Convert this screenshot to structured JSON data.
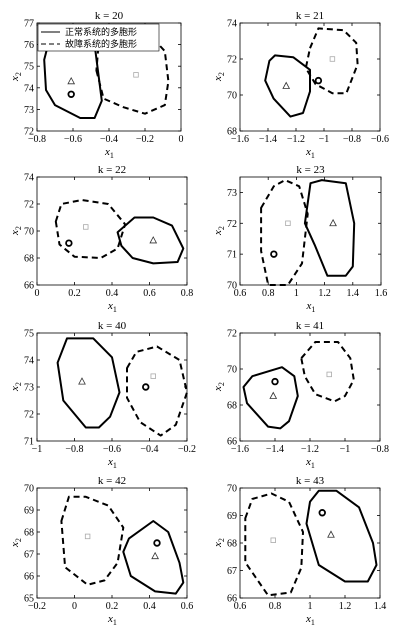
{
  "chart_data": [
    {
      "type": "scatter",
      "title": "k = 20",
      "xlabel": "x1",
      "ylabel": "x2",
      "xlim": [
        -0.8,
        0
      ],
      "ylim": [
        72,
        77
      ],
      "xticks": [
        -0.8,
        -0.6,
        -0.4,
        -0.2,
        0
      ],
      "yticks": [
        72,
        73,
        74,
        75,
        76,
        77
      ],
      "legend": {
        "placement": "top-left",
        "entries": [
          {
            "label": "正常系统的多胞形",
            "style": "solid"
          },
          {
            "label": "故障系统的多胞形",
            "style": "dashed"
          }
        ]
      },
      "series": [
        {
          "style": "solid",
          "polygon": [
            [
              -0.76,
              75.3
            ],
            [
              -0.75,
              73.9
            ],
            [
              -0.7,
              73.2
            ],
            [
              -0.56,
              72.6
            ],
            [
              -0.48,
              72.6
            ],
            [
              -0.44,
              73.4
            ],
            [
              -0.48,
              76.0
            ],
            [
              -0.56,
              76.6
            ],
            [
              -0.72,
              76.6
            ]
          ],
          "triangle": [
            -0.61,
            74.3
          ]
        },
        {
          "style": "dashed",
          "polygon": [
            [
              -0.47,
              74.8
            ],
            [
              -0.43,
              73.5
            ],
            [
              -0.32,
              73.1
            ],
            [
              -0.2,
              72.8
            ],
            [
              -0.09,
              73.2
            ],
            [
              -0.07,
              74.3
            ],
            [
              -0.09,
              75.7
            ],
            [
              -0.19,
              76.6
            ],
            [
              -0.36,
              76.6
            ],
            [
              -0.46,
              75.8
            ]
          ],
          "square": [
            -0.25,
            74.6
          ]
        }
      ],
      "circle": [
        -0.61,
        73.7
      ]
    },
    {
      "type": "scatter",
      "title": "k = 21",
      "xlabel": "x1",
      "ylabel": "x2",
      "xlim": [
        -1.6,
        -0.6
      ],
      "ylim": [
        68,
        74
      ],
      "xticks": [
        -1.6,
        -1.4,
        -1.2,
        -1.0,
        -0.8,
        -0.6
      ],
      "yticks": [
        68,
        70,
        72,
        74
      ],
      "series": [
        {
          "style": "solid",
          "polygon": [
            [
              -1.39,
              71.9
            ],
            [
              -1.35,
              72.2
            ],
            [
              -1.22,
              72.1
            ],
            [
              -1.1,
              71.4
            ],
            [
              -1.1,
              70.2
            ],
            [
              -1.15,
              69.0
            ],
            [
              -1.24,
              68.8
            ],
            [
              -1.36,
              69.8
            ],
            [
              -1.42,
              70.8
            ]
          ],
          "triangle": [
            -1.27,
            70.5
          ]
        },
        {
          "style": "dashed",
          "polygon": [
            [
              -1.1,
              72.6
            ],
            [
              -1.04,
              73.7
            ],
            [
              -0.86,
              73.6
            ],
            [
              -0.77,
              72.9
            ],
            [
              -0.76,
              71.7
            ],
            [
              -0.84,
              70.1
            ],
            [
              -0.94,
              70.1
            ],
            [
              -1.06,
              70.6
            ],
            [
              -1.13,
              71.5
            ]
          ],
          "square": [
            -0.94,
            72.0
          ]
        }
      ],
      "circle": [
        -1.04,
        70.8
      ]
    },
    {
      "type": "scatter",
      "title": "k = 22",
      "xlabel": "x1",
      "ylabel": "x2",
      "xlim": [
        0,
        0.8
      ],
      "ylim": [
        66,
        74
      ],
      "xticks": [
        0,
        0.2,
        0.4,
        0.6,
        0.8
      ],
      "yticks": [
        66,
        68,
        70,
        72,
        74
      ],
      "series": [
        {
          "style": "solid",
          "polygon": [
            [
              0.43,
              69.9
            ],
            [
              0.52,
              71.0
            ],
            [
              0.62,
              71.0
            ],
            [
              0.72,
              70.4
            ],
            [
              0.78,
              68.7
            ],
            [
              0.75,
              67.7
            ],
            [
              0.62,
              67.6
            ],
            [
              0.51,
              68.0
            ],
            [
              0.45,
              68.9
            ]
          ],
          "triangle": [
            0.62,
            69.3
          ]
        },
        {
          "style": "dashed",
          "polygon": [
            [
              0.1,
              70.7
            ],
            [
              0.13,
              72.0
            ],
            [
              0.24,
              72.3
            ],
            [
              0.38,
              72.0
            ],
            [
              0.47,
              70.5
            ],
            [
              0.43,
              68.7
            ],
            [
              0.34,
              68.0
            ],
            [
              0.2,
              68.1
            ],
            [
              0.12,
              69.0
            ]
          ],
          "square": [
            0.26,
            70.3
          ]
        }
      ],
      "circle": [
        0.17,
        69.1
      ]
    },
    {
      "type": "scatter",
      "title": "k = 23",
      "xlabel": "x1",
      "ylabel": "x2",
      "xlim": [
        0.6,
        1.6
      ],
      "ylim": [
        70,
        73.5
      ],
      "xticks": [
        0.6,
        0.8,
        1.0,
        1.2,
        1.4,
        1.6
      ],
      "yticks": [
        70,
        71,
        72,
        73
      ],
      "series": [
        {
          "style": "solid",
          "polygon": [
            [
              1.06,
              72.0
            ],
            [
              1.1,
              73.3
            ],
            [
              1.18,
              73.4
            ],
            [
              1.35,
              73.3
            ],
            [
              1.41,
              72.0
            ],
            [
              1.4,
              70.6
            ],
            [
              1.35,
              70.3
            ],
            [
              1.22,
              70.3
            ],
            [
              1.13,
              71.3
            ]
          ],
          "triangle": [
            1.26,
            72.0
          ]
        },
        {
          "style": "dashed",
          "polygon": [
            [
              0.75,
              72.5
            ],
            [
              0.84,
              73.2
            ],
            [
              0.92,
              73.4
            ],
            [
              1.02,
              73.2
            ],
            [
              1.08,
              72.3
            ],
            [
              1.04,
              70.7
            ],
            [
              0.94,
              70.0
            ],
            [
              0.8,
              70.0
            ],
            [
              0.75,
              71.1
            ]
          ],
          "square": [
            0.94,
            72.0
          ]
        }
      ],
      "circle": [
        0.84,
        71.0
      ]
    },
    {
      "type": "scatter",
      "title": "k = 40",
      "xlabel": "x1",
      "ylabel": "x2",
      "xlim": [
        -1,
        -0.2
      ],
      "ylim": [
        71,
        75
      ],
      "xticks": [
        -1,
        -0.8,
        -0.6,
        -0.4,
        -0.2
      ],
      "yticks": [
        71,
        72,
        73,
        74,
        75
      ],
      "series": [
        {
          "style": "solid",
          "polygon": [
            [
              -0.89,
              73.9
            ],
            [
              -0.84,
              74.8
            ],
            [
              -0.7,
              74.8
            ],
            [
              -0.6,
              74.1
            ],
            [
              -0.56,
              72.8
            ],
            [
              -0.61,
              71.9
            ],
            [
              -0.67,
              71.5
            ],
            [
              -0.74,
              71.5
            ],
            [
              -0.86,
              72.5
            ]
          ],
          "triangle": [
            -0.76,
            73.2
          ]
        },
        {
          "style": "dashed",
          "polygon": [
            [
              -0.52,
              73.7
            ],
            [
              -0.47,
              74.3
            ],
            [
              -0.36,
              74.5
            ],
            [
              -0.24,
              74.0
            ],
            [
              -0.2,
              72.8
            ],
            [
              -0.26,
              71.6
            ],
            [
              -0.34,
              71.2
            ],
            [
              -0.45,
              71.7
            ],
            [
              -0.52,
              72.6
            ]
          ],
          "square": [
            -0.38,
            73.4
          ]
        }
      ],
      "circle": [
        -0.42,
        73.0
      ]
    },
    {
      "type": "scatter",
      "title": "k = 41",
      "xlabel": "x1",
      "ylabel": "x2",
      "xlim": [
        -1.6,
        -0.8
      ],
      "ylim": [
        66,
        72
      ],
      "xticks": [
        -1.6,
        -1.4,
        -1.2,
        -1.0,
        -0.8
      ],
      "yticks": [
        66,
        68,
        70,
        72
      ],
      "series": [
        {
          "style": "solid",
          "polygon": [
            [
              -1.58,
              69.0
            ],
            [
              -1.53,
              69.6
            ],
            [
              -1.36,
              70.1
            ],
            [
              -1.29,
              69.6
            ],
            [
              -1.27,
              68.5
            ],
            [
              -1.32,
              67.1
            ],
            [
              -1.37,
              66.7
            ],
            [
              -1.44,
              66.8
            ],
            [
              -1.56,
              68.1
            ]
          ],
          "triangle": [
            -1.41,
            68.5
          ]
        },
        {
          "style": "dashed",
          "polygon": [
            [
              -1.25,
              70.6
            ],
            [
              -1.17,
              71.5
            ],
            [
              -1.04,
              71.5
            ],
            [
              -0.97,
              70.6
            ],
            [
              -0.95,
              69.4
            ],
            [
              -1.0,
              68.5
            ],
            [
              -1.06,
              68.2
            ],
            [
              -1.17,
              68.6
            ],
            [
              -1.23,
              69.6
            ]
          ],
          "square": [
            -1.09,
            69.7
          ]
        }
      ],
      "circle": [
        -1.4,
        69.3
      ]
    },
    {
      "type": "scatter",
      "title": "k = 42",
      "xlabel": "x1",
      "ylabel": "x2",
      "xlim": [
        -0.2,
        0.6
      ],
      "ylim": [
        65,
        70
      ],
      "xticks": [
        -0.2,
        0,
        0.2,
        0.4,
        0.6
      ],
      "yticks": [
        65,
        66,
        67,
        68,
        69,
        70
      ],
      "series": [
        {
          "style": "solid",
          "polygon": [
            [
              0.26,
              67.1
            ],
            [
              0.29,
              67.7
            ],
            [
              0.42,
              68.5
            ],
            [
              0.5,
              68.0
            ],
            [
              0.56,
              66.6
            ],
            [
              0.58,
              65.7
            ],
            [
              0.54,
              65.2
            ],
            [
              0.43,
              65.3
            ],
            [
              0.3,
              66.0
            ]
          ],
          "triangle": [
            0.43,
            66.9
          ]
        },
        {
          "style": "dashed",
          "polygon": [
            [
              -0.07,
              68.5
            ],
            [
              -0.03,
              69.6
            ],
            [
              0.06,
              69.6
            ],
            [
              0.18,
              69.2
            ],
            [
              0.26,
              68.2
            ],
            [
              0.23,
              66.6
            ],
            [
              0.16,
              65.8
            ],
            [
              0.07,
              65.6
            ],
            [
              -0.05,
              66.4
            ]
          ],
          "square": [
            0.07,
            67.8
          ]
        }
      ],
      "circle": [
        0.44,
        67.5
      ]
    },
    {
      "type": "scatter",
      "title": "k = 43",
      "xlabel": "x1",
      "ylabel": "x2",
      "xlim": [
        0.6,
        1.4
      ],
      "ylim": [
        66,
        70
      ],
      "xticks": [
        0.6,
        0.8,
        1.0,
        1.2,
        1.4
      ],
      "yticks": [
        66,
        67,
        68,
        69,
        70
      ],
      "series": [
        {
          "style": "solid",
          "polygon": [
            [
              1.0,
              69.5
            ],
            [
              1.05,
              69.9
            ],
            [
              1.15,
              69.9
            ],
            [
              1.28,
              69.3
            ],
            [
              1.36,
              68.0
            ],
            [
              1.38,
              67.2
            ],
            [
              1.33,
              66.6
            ],
            [
              1.2,
              66.6
            ],
            [
              1.05,
              67.2
            ],
            [
              0.98,
              68.7
            ]
          ],
          "triangle": [
            1.12,
            68.3
          ]
        },
        {
          "style": "dashed",
          "polygon": [
            [
              0.63,
              68.9
            ],
            [
              0.67,
              69.6
            ],
            [
              0.78,
              69.8
            ],
            [
              0.88,
              69.5
            ],
            [
              0.96,
              68.4
            ],
            [
              0.95,
              67.1
            ],
            [
              0.89,
              66.2
            ],
            [
              0.76,
              66.1
            ],
            [
              0.63,
              67.3
            ]
          ],
          "square": [
            0.79,
            68.1
          ]
        }
      ],
      "circle": [
        1.07,
        69.1
      ]
    }
  ]
}
